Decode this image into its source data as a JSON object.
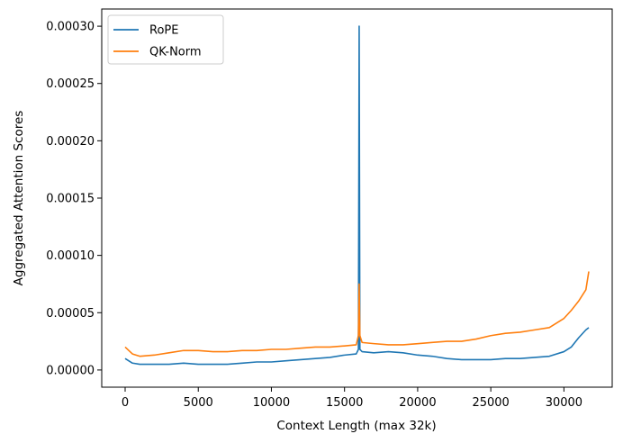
{
  "chart_data": {
    "type": "line",
    "title": "",
    "xlabel": "Context Length (max 32k)",
    "ylabel": "Aggregated Attention Scores",
    "xlim": [
      -1600,
      33300
    ],
    "ylim": [
      -1.5e-05,
      0.000315
    ],
    "xticks": [
      0,
      5000,
      10000,
      15000,
      20000,
      25000,
      30000
    ],
    "xtick_labels": [
      "0",
      "5000",
      "10000",
      "15000",
      "20000",
      "25000",
      "30000"
    ],
    "yticks": [
      0,
      5e-05,
      0.0001,
      0.00015,
      0.0002,
      0.00025,
      0.0003
    ],
    "ytick_labels": [
      "0.00000",
      "0.00005",
      "0.00010",
      "0.00015",
      "0.00020",
      "0.00025",
      "0.00030"
    ],
    "grid": false,
    "legend": "top-left",
    "series": [
      {
        "name": "RoPE",
        "color": "#1f77b4",
        "x": [
          0,
          500,
          1000,
          2000,
          3000,
          4000,
          5000,
          6000,
          7000,
          8000,
          9000,
          10000,
          11000,
          12000,
          13000,
          14000,
          15000,
          15800,
          15950,
          16000,
          16050,
          16200,
          17000,
          18000,
          19000,
          20000,
          21000,
          22000,
          23000,
          24000,
          25000,
          26000,
          27000,
          28000,
          29000,
          30000,
          30500,
          31000,
          31500,
          31700
        ],
        "y": [
          1e-05,
          6e-06,
          5e-06,
          5e-06,
          5e-06,
          6e-06,
          5e-06,
          5e-06,
          5e-06,
          6e-06,
          7e-06,
          7e-06,
          8e-06,
          9e-06,
          1e-05,
          1.1e-05,
          1.3e-05,
          1.4e-05,
          1.8e-05,
          0.0003,
          1.8e-05,
          1.6e-05,
          1.5e-05,
          1.6e-05,
          1.5e-05,
          1.3e-05,
          1.2e-05,
          1e-05,
          9e-06,
          9e-06,
          9e-06,
          1e-05,
          1e-05,
          1.1e-05,
          1.2e-05,
          1.6e-05,
          2e-05,
          2.8e-05,
          3.5e-05,
          3.7e-05
        ]
      },
      {
        "name": "QK-Norm",
        "color": "#ff7f0e",
        "x": [
          0,
          500,
          1000,
          2000,
          3000,
          4000,
          5000,
          6000,
          7000,
          8000,
          9000,
          10000,
          11000,
          12000,
          13000,
          14000,
          15000,
          15800,
          15950,
          16000,
          16050,
          16200,
          17000,
          18000,
          19000,
          20000,
          21000,
          22000,
          23000,
          24000,
          25000,
          26000,
          27000,
          28000,
          29000,
          30000,
          30500,
          31000,
          31500,
          31700
        ],
        "y": [
          2e-05,
          1.4e-05,
          1.2e-05,
          1.3e-05,
          1.5e-05,
          1.7e-05,
          1.7e-05,
          1.6e-05,
          1.6e-05,
          1.7e-05,
          1.7e-05,
          1.8e-05,
          1.8e-05,
          1.9e-05,
          2e-05,
          2e-05,
          2.1e-05,
          2.2e-05,
          3e-05,
          7.5e-05,
          3e-05,
          2.4e-05,
          2.3e-05,
          2.2e-05,
          2.2e-05,
          2.3e-05,
          2.4e-05,
          2.5e-05,
          2.5e-05,
          2.7e-05,
          3e-05,
          3.2e-05,
          3.3e-05,
          3.5e-05,
          3.7e-05,
          4.5e-05,
          5.2e-05,
          6e-05,
          7e-05,
          8.6e-05
        ]
      }
    ]
  }
}
